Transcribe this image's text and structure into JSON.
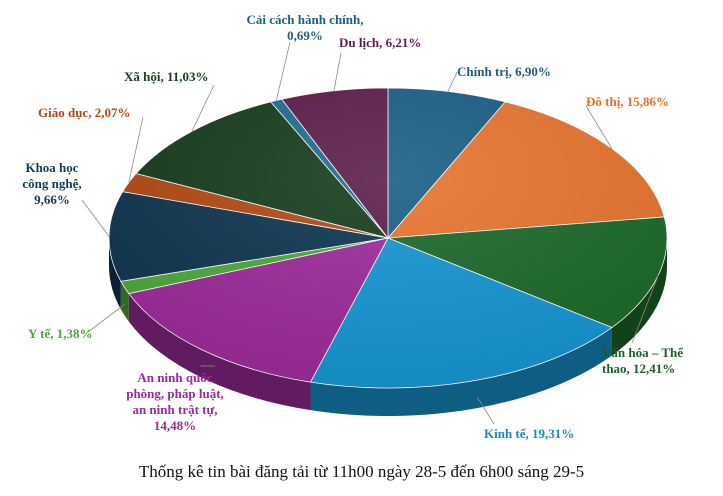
{
  "caption": "Thống kê tin bài đăng tải từ 11h00 ngày 28-5 đến 6h00 sáng 29-5",
  "chart_data": {
    "type": "pie",
    "title": "",
    "unit": "%",
    "slices": [
      {
        "name": "Chính trị",
        "value": 6.9,
        "display": "6,90%",
        "color": "#1a5f86",
        "label_lines": [
          "Chính trị, 6,90%"
        ],
        "label_color": "#1f5a7a"
      },
      {
        "name": "Đô thị",
        "value": 15.86,
        "display": "15,86%",
        "color": "#e8742f",
        "label_lines": [
          "Đô thị, 15,86%"
        ],
        "label_color": "#e0702a"
      },
      {
        "name": "Văn hóa – Thể thao",
        "value": 12.41,
        "display": "12,41%",
        "color": "#1d6a2a",
        "label_lines": [
          "Văn hóa – Thể",
          "thao, 12,41%"
        ],
        "label_color": "#1c5e27"
      },
      {
        "name": "Kinh tế",
        "value": 19.31,
        "display": "19,31%",
        "color": "#1796d2",
        "label_lines": [
          "Kinh tế, 19,31%"
        ],
        "label_color": "#1f86c2"
      },
      {
        "name": "An ninh quốc phòng, pháp luật, an ninh trật tự",
        "value": 14.48,
        "display": "14,48%",
        "color": "#9d2c9b",
        "label_lines": [
          "An ninh quốc",
          "phòng, pháp luật,",
          "an ninh trật tự,",
          "14,48%"
        ],
        "label_color": "#9b2a96"
      },
      {
        "name": "Y tế",
        "value": 1.38,
        "display": "1,38%",
        "color": "#4caa3a",
        "label_lines": [
          "Y tế, 1,38%"
        ],
        "label_color": "#4ea539"
      },
      {
        "name": "Khoa học công nghệ",
        "value": 9.66,
        "display": "9,66%",
        "color": "#0f3650",
        "label_lines": [
          "Khoa học",
          "công nghệ,",
          "9,66%"
        ],
        "label_color": "#143a52"
      },
      {
        "name": "Giáo dục",
        "value": 2.07,
        "display": "2,07%",
        "color": "#b34a14",
        "label_lines": [
          "Giáo dục, 2,07%"
        ],
        "label_color": "#b04816"
      },
      {
        "name": "Xã hội",
        "value": 11.03,
        "display": "11,03%",
        "color": "#173d1d",
        "label_lines": [
          "Xã hội, 11,03%"
        ],
        "label_color": "#1a3d1f"
      },
      {
        "name": "Cải cách hành chính",
        "value": 0.69,
        "display": "0,69%",
        "color": "#1f6e90",
        "label_lines": [
          "Cải cách hành chính,",
          "0,69%"
        ],
        "label_color": "#1f5f80"
      },
      {
        "name": "Du lịch",
        "value": 6.21,
        "display": "6,21%",
        "color": "#5c1f4c",
        "label_lines": [
          "Du lịch, 6,21%"
        ],
        "label_color": "#5a1f4c"
      }
    ]
  }
}
